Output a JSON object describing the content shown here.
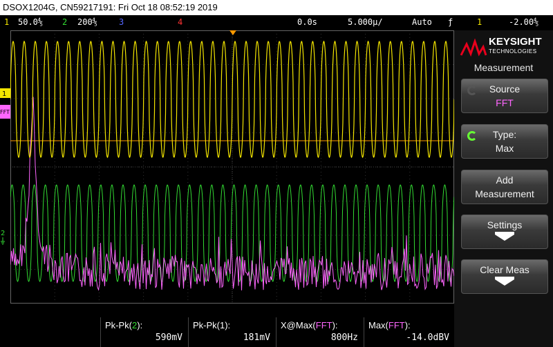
{
  "title_bar": {
    "text": "DSOX1204G, CN59217191: Fri Oct 18 08:52:19 2019"
  },
  "status": {
    "ch1_num": "1",
    "ch1_scale": "50.0⅘",
    "ch2_num": "2",
    "ch2_scale": "200⅘",
    "ch3_num": "3",
    "ch4_num": "4",
    "time_delay": "0.0s",
    "time_scale": "5.000µ/",
    "trigger_mode": "Auto",
    "trigger_icon": "ƒ",
    "trigger_source": "1",
    "trigger_level": "-2.00⅘"
  },
  "colors": {
    "ch1": "#f4e600",
    "ch2": "#33dd33",
    "ch3": "#5566ff",
    "ch4": "#ff3333",
    "fft": "#ff66ff",
    "trigger": "#ff9900"
  },
  "screen_markers": {
    "ch1_marker": "1",
    "fft_marker": "FFT",
    "ch2_marker": "2"
  },
  "panel": {
    "brand": "KEYSIGHT",
    "brand_sub": "TECHNOLOGIES",
    "title": "Measurement",
    "source_label": "Source",
    "source_value": "FFT",
    "type_label": "Type:",
    "type_value": "Max",
    "add_line1": "Add",
    "add_line2": "Measurement",
    "settings_label": "Settings",
    "clear_label": "Clear Meas"
  },
  "measurements": [
    {
      "name": "Pk-Pk(",
      "src": "2",
      "close": "):",
      "value": "590mV"
    },
    {
      "name": "Pk-Pk(1):",
      "value": "181mV"
    },
    {
      "name": "X@Max(",
      "src": "FFT",
      "close": "):",
      "value": "800Hz"
    },
    {
      "name": "Max(",
      "src": "FFT",
      "close": "):",
      "value": "-14.0dBV"
    }
  ],
  "waveforms": {
    "ch1_cycles": 40,
    "ch2_cycles": 40,
    "fft_peak_position": 0.05
  }
}
